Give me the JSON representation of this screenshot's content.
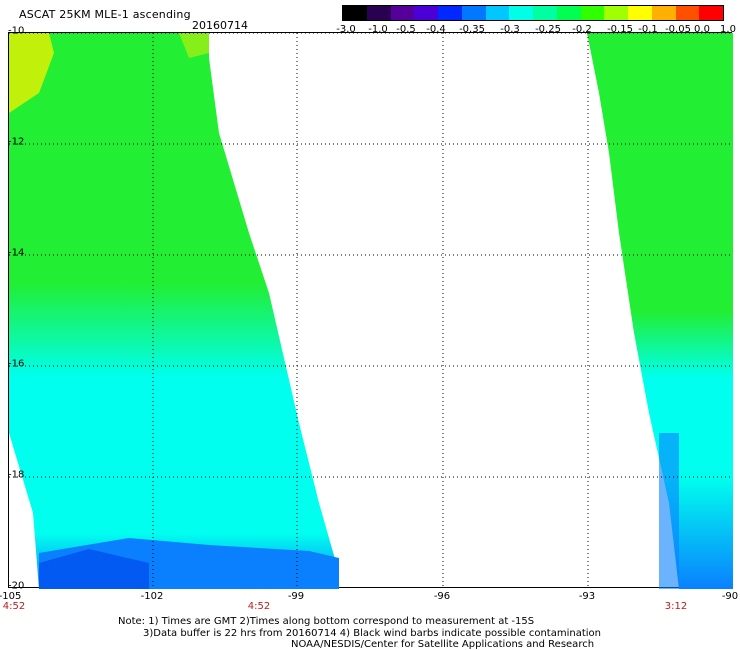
{
  "header": {
    "title": "ASCAT 25KM MLE-1 ascending",
    "date": "20160714"
  },
  "colorbar": {
    "tick_labels": [
      "-3.0",
      "-1.0",
      "-0.5",
      "-0.4",
      "-0.35",
      "-0.3",
      "-0.25",
      "-0.2",
      "-0.15",
      "-0.1",
      "-0.05",
      "0.0",
      "1.0"
    ],
    "colors": [
      "#000000",
      "#2a0050",
      "#55009a",
      "#4c00d8",
      "#0028ff",
      "#0078ff",
      "#00c8ff",
      "#00ffe6",
      "#00ffa0",
      "#00ff50",
      "#30ff00",
      "#a0ff00",
      "#ffff00",
      "#ffb000",
      "#ff5000",
      "#ff0000"
    ]
  },
  "map": {
    "lat_labels": [
      "-10",
      "-12",
      "-14",
      "-16",
      "-18",
      "-20"
    ],
    "lon_labels": [
      "-105",
      "-102",
      "-99",
      "-96",
      "-93",
      "-90"
    ],
    "time_labels": [
      "4:52",
      "4:52",
      "3:12"
    ],
    "colors": {
      "green": "#22ee33",
      "yellow": "#eaf000",
      "cyan": "#00ffee",
      "blue": "#0a80ff",
      "darkblue": "#0050f0"
    }
  },
  "footer": {
    "line1": "Note: 1) Times are GMT 2)Times along bottom correspond to measurement at -15S",
    "line2": "3)Data buffer is 22 hrs from 20160714 4) Black wind barbs indicate possible contamination",
    "line3": "NOAA/NESDIS/Center for Satellite Applications and Research"
  }
}
